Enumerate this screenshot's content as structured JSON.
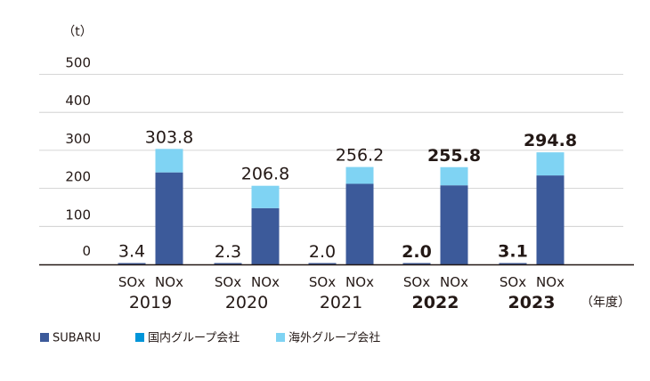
{
  "chart_data": {
    "type": "bar",
    "unit_label": "（t）",
    "x_unit_label": "（年度）",
    "ylim": [
      0,
      500
    ],
    "yticks": [
      "0",
      "100",
      "200",
      "300",
      "400",
      "500"
    ],
    "bar_labels": [
      "SOx",
      "NOx"
    ],
    "grid": true,
    "legend_position": "bottom-left",
    "series": [
      {
        "name": "SUBARU",
        "color": "#3c5a9a"
      },
      {
        "name": "国内グループ会社",
        "color": "#0095d9"
      },
      {
        "name": "海外グループ会社",
        "color": "#7fd3f3"
      }
    ],
    "years": [
      {
        "year": "2019",
        "bold": false,
        "sox": {
          "label": "3.4",
          "values": [
            3.4,
            0,
            0
          ]
        },
        "nox": {
          "label": "303.8",
          "values": [
            242,
            0,
            61.8
          ]
        }
      },
      {
        "year": "2020",
        "bold": false,
        "sox": {
          "label": "2.3",
          "values": [
            2.3,
            0,
            0
          ]
        },
        "nox": {
          "label": "206.8",
          "values": [
            148,
            0,
            58.8
          ]
        }
      },
      {
        "year": "2021",
        "bold": false,
        "sox": {
          "label": "2.0",
          "values": [
            2.0,
            0,
            0
          ]
        },
        "nox": {
          "label": "256.2",
          "values": [
            212,
            0,
            44.2
          ]
        }
      },
      {
        "year": "2022",
        "bold": true,
        "sox": {
          "label": "2.0",
          "values": [
            2.0,
            0,
            0
          ]
        },
        "nox": {
          "label": "255.8",
          "values": [
            208,
            0,
            47.8
          ]
        }
      },
      {
        "year": "2023",
        "bold": true,
        "sox": {
          "label": "3.1",
          "values": [
            3.1,
            0,
            0
          ]
        },
        "nox": {
          "label": "294.8",
          "values": [
            234,
            0,
            60.8
          ]
        }
      }
    ]
  }
}
